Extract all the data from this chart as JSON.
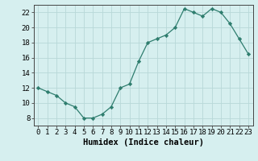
{
  "xlabel": "Humidex (Indice chaleur)",
  "x": [
    0,
    1,
    2,
    3,
    4,
    5,
    6,
    7,
    8,
    9,
    10,
    11,
    12,
    13,
    14,
    15,
    16,
    17,
    18,
    19,
    20,
    21,
    22,
    23
  ],
  "y": [
    12.0,
    11.5,
    11.0,
    10.0,
    9.5,
    8.0,
    8.0,
    8.5,
    9.5,
    12.0,
    12.5,
    15.5,
    18.0,
    18.5,
    19.0,
    20.0,
    22.5,
    22.0,
    21.5,
    22.5,
    22.0,
    20.5,
    18.5,
    16.5
  ],
  "line_color": "#2e7d6e",
  "marker": "D",
  "marker_size": 2.2,
  "bg_color": "#d6efef",
  "grid_color": "#b8d8d8",
  "ylim": [
    7,
    23
  ],
  "yticks": [
    8,
    10,
    12,
    14,
    16,
    18,
    20,
    22
  ],
  "xlim": [
    -0.5,
    23.5
  ],
  "xticks": [
    0,
    1,
    2,
    3,
    4,
    5,
    6,
    7,
    8,
    9,
    10,
    11,
    12,
    13,
    14,
    15,
    16,
    17,
    18,
    19,
    20,
    21,
    22,
    23
  ],
  "tick_fontsize": 6.5,
  "xlabel_fontsize": 7.5
}
